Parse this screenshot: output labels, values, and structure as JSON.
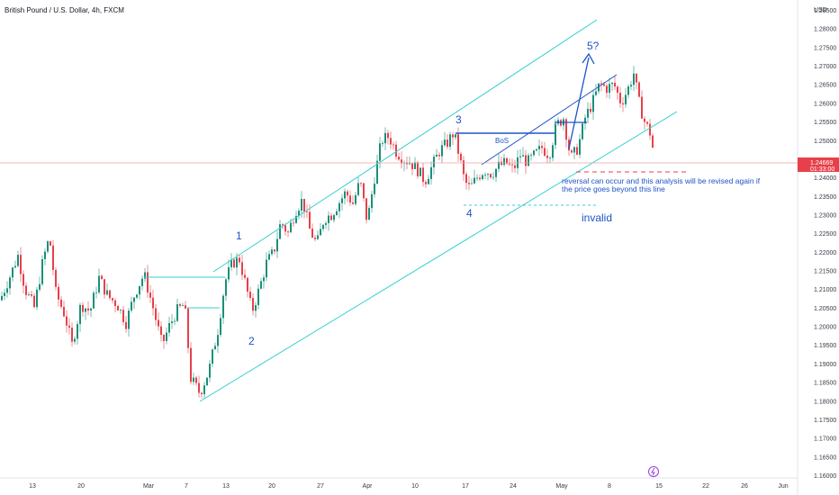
{
  "chart_data": {
    "type": "candlestick",
    "title": "British Pound / U.S. Dollar, 4h, FXCM",
    "currency_label": "USD",
    "ylim": [
      1.16,
      1.29
    ],
    "y_ticks": [
      "1.28500",
      "1.28000",
      "1.27500",
      "1.27000",
      "1.26500",
      "1.26000",
      "1.25500",
      "1.25000",
      "1.24000",
      "1.23500",
      "1.23000",
      "1.22500",
      "1.22000",
      "1.21500",
      "1.21000",
      "1.20500",
      "1.20000",
      "1.19500",
      "1.19000",
      "1.18500",
      "1.18000",
      "1.17500",
      "1.17000",
      "1.16500",
      "1.16000"
    ],
    "x_ticks": [
      "13",
      "20",
      "Mar",
      "7",
      "13",
      "20",
      "27",
      "Apr",
      "10",
      "17",
      "24",
      "May",
      "8",
      "15",
      "22",
      "26",
      "Jun"
    ],
    "current_price": "1.24669",
    "countdown": "01:33:00",
    "up_color": "#1a8f7a",
    "down_color": "#e8404a",
    "series": [
      {
        "x": 0,
        "y": 1.207
      },
      {
        "x": 12,
        "y": 1.214
      },
      {
        "x": 20,
        "y": 1.219
      },
      {
        "x": 28,
        "y": 1.21
      },
      {
        "x": 38,
        "y": 1.205
      },
      {
        "x": 48,
        "y": 1.218
      },
      {
        "x": 55,
        "y": 1.224
      },
      {
        "x": 62,
        "y": 1.209
      },
      {
        "x": 72,
        "y": 1.203
      },
      {
        "x": 80,
        "y": 1.195
      },
      {
        "x": 90,
        "y": 1.206
      },
      {
        "x": 100,
        "y": 1.204
      },
      {
        "x": 110,
        "y": 1.213
      },
      {
        "x": 120,
        "y": 1.208
      },
      {
        "x": 130,
        "y": 1.206
      },
      {
        "x": 140,
        "y": 1.201
      },
      {
        "x": 150,
        "y": 1.209
      },
      {
        "x": 160,
        "y": 1.214
      },
      {
        "x": 170,
        "y": 1.205
      },
      {
        "x": 180,
        "y": 1.195
      },
      {
        "x": 188,
        "y": 1.2
      },
      {
        "x": 196,
        "y": 1.204
      },
      {
        "x": 205,
        "y": 1.206
      },
      {
        "x": 212,
        "y": 1.186
      },
      {
        "x": 222,
        "y": 1.182
      },
      {
        "x": 232,
        "y": 1.188
      },
      {
        "x": 242,
        "y": 1.199
      },
      {
        "x": 250,
        "y": 1.212
      },
      {
        "x": 258,
        "y": 1.217
      },
      {
        "x": 266,
        "y": 1.218
      },
      {
        "x": 274,
        "y": 1.21
      },
      {
        "x": 280,
        "y": 1.204
      },
      {
        "x": 288,
        "y": 1.21
      },
      {
        "x": 296,
        "y": 1.217
      },
      {
        "x": 304,
        "y": 1.22
      },
      {
        "x": 312,
        "y": 1.228
      },
      {
        "x": 320,
        "y": 1.225
      },
      {
        "x": 328,
        "y": 1.231
      },
      {
        "x": 336,
        "y": 1.234
      },
      {
        "x": 344,
        "y": 1.226
      },
      {
        "x": 352,
        "y": 1.222
      },
      {
        "x": 360,
        "y": 1.229
      },
      {
        "x": 368,
        "y": 1.23
      },
      {
        "x": 376,
        "y": 1.233
      },
      {
        "x": 384,
        "y": 1.236
      },
      {
        "x": 392,
        "y": 1.233
      },
      {
        "x": 400,
        "y": 1.239
      },
      {
        "x": 408,
        "y": 1.228
      },
      {
        "x": 416,
        "y": 1.24
      },
      {
        "x": 424,
        "y": 1.25
      },
      {
        "x": 432,
        "y": 1.251
      },
      {
        "x": 440,
        "y": 1.247
      },
      {
        "x": 448,
        "y": 1.245
      },
      {
        "x": 456,
        "y": 1.244
      },
      {
        "x": 464,
        "y": 1.242
      },
      {
        "x": 472,
        "y": 1.239
      },
      {
        "x": 480,
        "y": 1.243
      },
      {
        "x": 488,
        "y": 1.247
      },
      {
        "x": 496,
        "y": 1.249
      },
      {
        "x": 504,
        "y": 1.252
      },
      {
        "x": 510,
        "y": 1.246
      },
      {
        "x": 516,
        "y": 1.239
      },
      {
        "x": 522,
        "y": 1.237
      },
      {
        "x": 530,
        "y": 1.24
      },
      {
        "x": 538,
        "y": 1.242
      },
      {
        "x": 546,
        "y": 1.241
      },
      {
        "x": 554,
        "y": 1.243
      },
      {
        "x": 562,
        "y": 1.244
      },
      {
        "x": 570,
        "y": 1.242
      },
      {
        "x": 578,
        "y": 1.246
      },
      {
        "x": 586,
        "y": 1.244
      },
      {
        "x": 594,
        "y": 1.246
      },
      {
        "x": 602,
        "y": 1.248
      },
      {
        "x": 610,
        "y": 1.246
      },
      {
        "x": 618,
        "y": 1.254
      },
      {
        "x": 626,
        "y": 1.256
      },
      {
        "x": 634,
        "y": 1.245
      },
      {
        "x": 642,
        "y": 1.248
      },
      {
        "x": 650,
        "y": 1.256
      },
      {
        "x": 658,
        "y": 1.26
      },
      {
        "x": 666,
        "y": 1.265
      },
      {
        "x": 674,
        "y": 1.264
      },
      {
        "x": 682,
        "y": 1.265
      },
      {
        "x": 690,
        "y": 1.26
      },
      {
        "x": 698,
        "y": 1.264
      },
      {
        "x": 704,
        "y": 1.268
      },
      {
        "x": 710,
        "y": 1.26
      },
      {
        "x": 716,
        "y": 1.255
      },
      {
        "x": 722,
        "y": 1.252
      },
      {
        "x": 726,
        "y": 1.2467
      }
    ],
    "annotations": {
      "wave_labels": [
        "1",
        "2",
        "3",
        "4",
        "5?"
      ],
      "bos_label": "BoS",
      "note_line1": "reversal can occur and this analysis will be revised again if",
      "note_line2": "the price goes beyond this line",
      "invalid_label": "invalid"
    },
    "channel_color": "#35d0d0",
    "annotation_color": "#1e53c8"
  }
}
